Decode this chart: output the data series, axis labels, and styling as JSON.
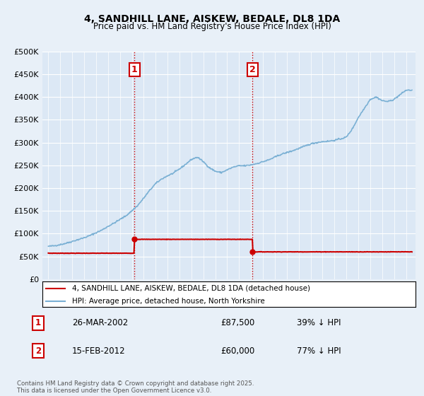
{
  "title": "4, SANDHILL LANE, AISKEW, BEDALE, DL8 1DA",
  "subtitle": "Price paid vs. HM Land Registry's House Price Index (HPI)",
  "ylim": [
    0,
    500000
  ],
  "yticks": [
    0,
    50000,
    100000,
    150000,
    200000,
    250000,
    300000,
    350000,
    400000,
    450000,
    500000
  ],
  "ytick_labels": [
    "£0",
    "£50K",
    "£100K",
    "£150K",
    "£200K",
    "£250K",
    "£300K",
    "£350K",
    "£400K",
    "£450K",
    "£500K"
  ],
  "bg_color": "#e8f0f8",
  "plot_bg_color": "#dce8f5",
  "hpi_color": "#7ab0d4",
  "price_color": "#cc0000",
  "transaction1_date": 2002.23,
  "transaction1_price": 87500,
  "transaction1_label": "1",
  "transaction2_date": 2012.12,
  "transaction2_price": 60000,
  "transaction2_label": "2",
  "legend_property": "4, SANDHILL LANE, AISKEW, BEDALE, DL8 1DA (detached house)",
  "legend_hpi": "HPI: Average price, detached house, North Yorkshire",
  "t1_date_str": "26-MAR-2002",
  "t1_price_str": "£87,500",
  "t1_hpi_str": "39% ↓ HPI",
  "t2_date_str": "15-FEB-2012",
  "t2_price_str": "£60,000",
  "t2_hpi_str": "77% ↓ HPI",
  "footnote": "Contains HM Land Registry data © Crown copyright and database right 2025.\nThis data is licensed under the Open Government Licence v3.0.",
  "xstart": 1994.5,
  "xend": 2025.8
}
